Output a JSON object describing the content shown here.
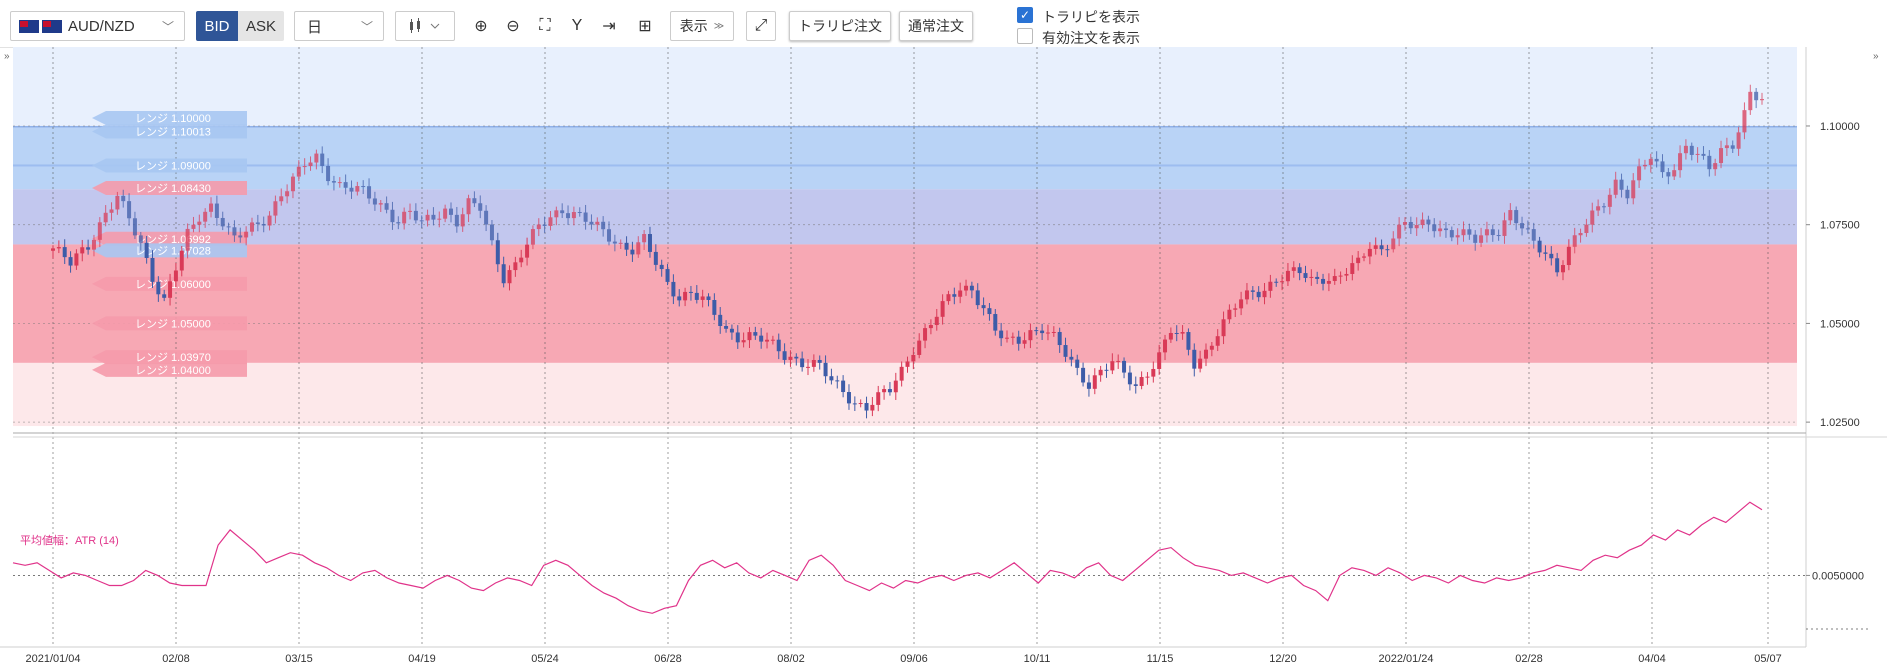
{
  "toolbar": {
    "pair": "AUD/NZD",
    "bid": "BID",
    "ask": "ASK",
    "period": "日",
    "display_label": "表示",
    "trap_order": "トラリピ注文",
    "normal_order": "通常注文",
    "show_trap": "トラリピを表示",
    "show_active": "有効注文を表示",
    "show_trap_checked": true,
    "show_active_checked": false
  },
  "colors": {
    "up": "#d93a57",
    "down": "#3d5ca8",
    "atr": "#e0338a",
    "range_blue": "#a9c8f5",
    "range_red": "#f79aa6",
    "label_blue": "#a7c6f2",
    "label_red": "#f59aab"
  },
  "range_labels": [
    {
      "text": "レンジ 1.10000",
      "price": 1.1,
      "side": "sell"
    },
    {
      "text": "レンジ 1.10013",
      "price": 1.10013,
      "side": "sell"
    },
    {
      "text": "レンジ 1.09000",
      "price": 1.09,
      "side": "sell"
    },
    {
      "text": "レンジ 1.08430",
      "price": 1.0843,
      "side": "buy"
    },
    {
      "text": "レンジ 1.06992",
      "price": 1.06992,
      "side": "buy"
    },
    {
      "text": "レンジ 1.07028",
      "price": 1.07028,
      "side": "sell"
    },
    {
      "text": "レンジ 1.06000",
      "price": 1.06,
      "side": "buy"
    },
    {
      "text": "レンジ 1.05000",
      "price": 1.05,
      "side": "buy"
    },
    {
      "text": "レンジ 1.03970",
      "price": 1.0397,
      "side": "buy"
    },
    {
      "text": "レンジ 1.04000",
      "price": 1.04,
      "side": "buy"
    }
  ],
  "chart_data": [
    {
      "type": "candlestick",
      "title": "",
      "x_ticks": [
        "2021/01/04",
        "02/08",
        "03/15",
        "04/19",
        "05/24",
        "06/28",
        "08/02",
        "09/06",
        "10/11",
        "11/15",
        "12/20",
        "2022/01/24",
        "02/28",
        "04/04",
        "05/07"
      ],
      "y_ticks": [
        "1.10000",
        "1.07500",
        "1.05000",
        "1.02500"
      ],
      "ylim": [
        1.0225,
        1.12
      ],
      "shaded_zones": [
        {
          "from": 1.084,
          "to": 1.1,
          "color": "blue"
        },
        {
          "from": 1.07,
          "to": 1.084,
          "color": "purple"
        },
        {
          "from": 1.04,
          "to": 1.07,
          "color": "red"
        },
        {
          "from": 1.024,
          "to": 1.04,
          "color": "pink"
        }
      ],
      "close_path": [
        [
          0,
          1.069
        ],
        [
          3,
          1.065
        ],
        [
          6,
          1.07
        ],
        [
          9,
          1.078
        ],
        [
          11,
          1.082
        ],
        [
          13,
          1.076
        ],
        [
          15,
          1.07
        ],
        [
          17,
          1.062
        ],
        [
          19,
          1.056
        ],
        [
          21,
          1.064
        ],
        [
          23,
          1.072
        ],
        [
          25,
          1.077
        ],
        [
          27,
          1.08
        ],
        [
          29,
          1.076
        ],
        [
          31,
          1.071
        ],
        [
          33,
          1.073
        ],
        [
          35,
          1.075
        ],
        [
          37,
          1.078
        ],
        [
          39,
          1.083
        ],
        [
          41,
          1.086
        ],
        [
          43,
          1.09
        ],
        [
          45,
          1.092
        ],
        [
          47,
          1.088
        ],
        [
          49,
          1.085
        ],
        [
          51,
          1.084
        ],
        [
          53,
          1.083
        ],
        [
          55,
          1.081
        ],
        [
          57,
          1.079
        ],
        [
          59,
          1.076
        ],
        [
          61,
          1.078
        ],
        [
          63,
          1.075
        ],
        [
          65,
          1.077
        ],
        [
          67,
          1.079
        ],
        [
          69,
          1.076
        ],
        [
          71,
          1.08
        ],
        [
          73,
          1.079
        ],
        [
          75,
          1.07
        ],
        [
          77,
          1.062
        ],
        [
          79,
          1.065
        ],
        [
          81,
          1.07
        ],
        [
          83,
          1.074
        ],
        [
          85,
          1.077
        ],
        [
          87,
          1.079
        ],
        [
          89,
          1.078
        ],
        [
          91,
          1.076
        ],
        [
          93,
          1.074
        ],
        [
          95,
          1.072
        ],
        [
          97,
          1.07
        ],
        [
          99,
          1.069
        ],
        [
          101,
          1.071
        ],
        [
          103,
          1.065
        ],
        [
          105,
          1.06
        ],
        [
          107,
          1.057
        ],
        [
          109,
          1.058
        ],
        [
          111,
          1.056
        ],
        [
          113,
          1.052
        ],
        [
          115,
          1.048
        ],
        [
          117,
          1.047
        ],
        [
          119,
          1.047
        ],
        [
          121,
          1.046
        ],
        [
          123,
          1.044
        ],
        [
          125,
          1.042
        ],
        [
          127,
          1.041
        ],
        [
          129,
          1.04
        ],
        [
          131,
          1.039
        ],
        [
          133,
          1.035
        ],
        [
          135,
          1.033
        ],
        [
          137,
          1.03
        ],
        [
          139,
          1.029
        ],
        [
          141,
          1.031
        ],
        [
          143,
          1.033
        ],
        [
          145,
          1.038
        ],
        [
          147,
          1.044
        ],
        [
          149,
          1.048
        ],
        [
          151,
          1.052
        ],
        [
          153,
          1.056
        ],
        [
          155,
          1.059
        ],
        [
          157,
          1.059
        ],
        [
          159,
          1.054
        ],
        [
          161,
          1.048
        ],
        [
          163,
          1.045
        ],
        [
          165,
          1.046
        ],
        [
          167,
          1.048
        ],
        [
          169,
          1.049
        ],
        [
          171,
          1.046
        ],
        [
          173,
          1.042
        ],
        [
          175,
          1.038
        ],
        [
          177,
          1.035
        ],
        [
          179,
          1.038
        ],
        [
          181,
          1.04
        ],
        [
          183,
          1.037
        ],
        [
          185,
          1.034
        ],
        [
          187,
          1.038
        ],
        [
          189,
          1.042
        ],
        [
          191,
          1.048
        ],
        [
          193,
          1.046
        ],
        [
          195,
          1.04
        ],
        [
          197,
          1.043
        ],
        [
          199,
          1.048
        ],
        [
          201,
          1.052
        ],
        [
          203,
          1.056
        ],
        [
          205,
          1.058
        ],
        [
          207,
          1.059
        ],
        [
          209,
          1.061
        ],
        [
          211,
          1.062
        ],
        [
          213,
          1.063
        ],
        [
          215,
          1.061
        ],
        [
          217,
          1.062
        ],
        [
          219,
          1.061
        ],
        [
          221,
          1.063
        ],
        [
          223,
          1.065
        ],
        [
          225,
          1.07
        ],
        [
          227,
          1.069
        ],
        [
          229,
          1.072
        ],
        [
          231,
          1.075
        ],
        [
          233,
          1.074
        ],
        [
          235,
          1.076
        ],
        [
          237,
          1.074
        ],
        [
          239,
          1.073
        ],
        [
          241,
          1.072
        ],
        [
          243,
          1.071
        ],
        [
          245,
          1.073
        ],
        [
          247,
          1.074
        ],
        [
          249,
          1.078
        ],
        [
          251,
          1.074
        ],
        [
          253,
          1.07
        ],
        [
          255,
          1.068
        ],
        [
          257,
          1.064
        ],
        [
          259,
          1.069
        ],
        [
          261,
          1.073
        ],
        [
          263,
          1.077
        ],
        [
          265,
          1.081
        ],
        [
          267,
          1.086
        ],
        [
          269,
          1.083
        ],
        [
          271,
          1.088
        ],
        [
          273,
          1.092
        ],
        [
          275,
          1.088
        ],
        [
          277,
          1.09
        ],
        [
          279,
          1.095
        ],
        [
          281,
          1.092
        ],
        [
          283,
          1.089
        ],
        [
          285,
          1.094
        ],
        [
          287,
          1.096
        ],
        [
          289,
          1.103
        ],
        [
          290,
          1.108
        ],
        [
          292,
          1.106
        ]
      ]
    },
    {
      "type": "line",
      "title": "平均値幅：ATR (14)",
      "y_ticks": [
        "0.0050000"
      ],
      "values": [
        0.0055,
        0.0054,
        0.0055,
        0.0052,
        0.0049,
        0.0051,
        0.005,
        0.0048,
        0.0046,
        0.0046,
        0.0048,
        0.0052,
        0.005,
        0.0047,
        0.0046,
        0.0046,
        0.0046,
        0.0062,
        0.0068,
        0.0064,
        0.006,
        0.0055,
        0.0057,
        0.0059,
        0.0058,
        0.0055,
        0.0053,
        0.005,
        0.0048,
        0.0051,
        0.0052,
        0.0049,
        0.0047,
        0.0046,
        0.0045,
        0.0048,
        0.005,
        0.0048,
        0.0045,
        0.0044,
        0.0047,
        0.0049,
        0.0048,
        0.0046,
        0.0054,
        0.0056,
        0.0054,
        0.005,
        0.0046,
        0.0043,
        0.0041,
        0.0038,
        0.0036,
        0.0035,
        0.0037,
        0.0038,
        0.0048,
        0.0054,
        0.0056,
        0.0053,
        0.0055,
        0.0051,
        0.0049,
        0.0052,
        0.005,
        0.0048,
        0.0056,
        0.0058,
        0.0054,
        0.0048,
        0.0046,
        0.0044,
        0.0047,
        0.0045,
        0.0048,
        0.0047,
        0.0049,
        0.005,
        0.0048,
        0.005,
        0.0051,
        0.0049,
        0.0052,
        0.0055,
        0.0051,
        0.0047,
        0.0052,
        0.0051,
        0.0049,
        0.0053,
        0.0055,
        0.005,
        0.0048,
        0.0052,
        0.0056,
        0.006,
        0.0061,
        0.0057,
        0.0054,
        0.0053,
        0.0052,
        0.005,
        0.0051,
        0.0049,
        0.0047,
        0.0049,
        0.005,
        0.0046,
        0.0044,
        0.004,
        0.005,
        0.0053,
        0.0052,
        0.005,
        0.0053,
        0.0051,
        0.0048,
        0.005,
        0.0049,
        0.0047,
        0.005,
        0.0048,
        0.0047,
        0.0049,
        0.0048,
        0.0049,
        0.0051,
        0.0052,
        0.0054,
        0.0053,
        0.0052,
        0.0056,
        0.0058,
        0.0057,
        0.006,
        0.0062,
        0.0066,
        0.0064,
        0.0068,
        0.0066,
        0.007,
        0.0073,
        0.0071,
        0.0075,
        0.0079,
        0.0076
      ]
    }
  ]
}
